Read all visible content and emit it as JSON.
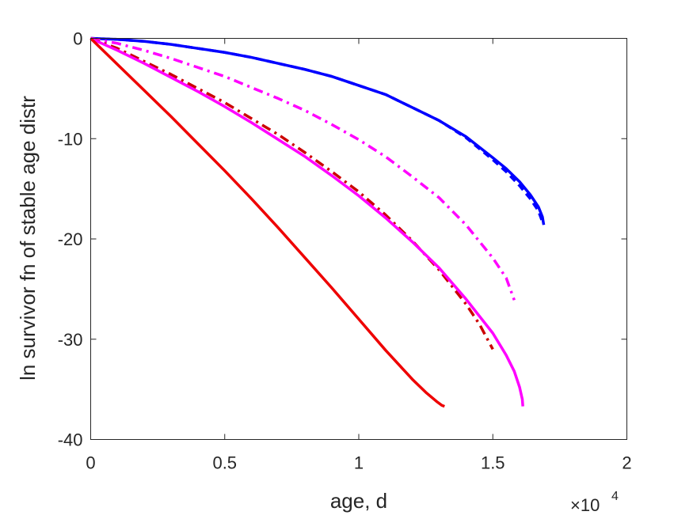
{
  "chart_data": {
    "type": "line",
    "xlabel": "age, d",
    "ylabel": "ln survivor fn of stable age distr",
    "x_exponent_label": "×10",
    "x_exponent_power": "4",
    "xlim": [
      0,
      20000
    ],
    "ylim": [
      -40,
      0
    ],
    "xticks": [
      0,
      5000,
      10000,
      15000,
      20000
    ],
    "xtick_labels": [
      "0",
      "0.5",
      "1",
      "1.5",
      "2"
    ],
    "yticks": [
      0,
      -10,
      -20,
      -30,
      -40
    ],
    "ytick_labels": [
      "0",
      "-10",
      "-20",
      "-30",
      "-40"
    ],
    "grid": false,
    "legend": "none",
    "series": [
      {
        "color": "#0000ff",
        "style": "solid",
        "x": [
          0,
          1000,
          2000,
          3000,
          4000,
          5000,
          6000,
          7000,
          8000,
          9000,
          10000,
          11000,
          12000,
          13000,
          14000,
          15000,
          15500,
          16000,
          16400,
          16700,
          16850,
          16900
        ],
        "y": [
          0,
          -0.1,
          -0.3,
          -0.6,
          -1.0,
          -1.4,
          -1.9,
          -2.5,
          -3.1,
          -3.8,
          -4.7,
          -5.6,
          -6.9,
          -8.2,
          -9.8,
          -11.9,
          -13.0,
          -14.3,
          -15.6,
          -16.8,
          -17.8,
          -18.6
        ]
      },
      {
        "color": "#0000ff",
        "style": "dashed",
        "x": [
          0,
          1000,
          2000,
          3000,
          4000,
          5000,
          6000,
          7000,
          8000,
          9000,
          10000,
          11000,
          12000,
          13000,
          14000,
          15000,
          15500,
          16000,
          16400,
          16700,
          16850
        ],
        "y": [
          0,
          -0.1,
          -0.3,
          -0.6,
          -1.0,
          -1.4,
          -1.9,
          -2.5,
          -3.1,
          -3.8,
          -4.7,
          -5.6,
          -6.9,
          -8.2,
          -9.9,
          -12.1,
          -13.3,
          -14.7,
          -16.0,
          -17.2,
          -18.3
        ]
      },
      {
        "color": "#ff00ff",
        "style": "dashdot",
        "x": [
          0,
          1000,
          2000,
          3000,
          4000,
          5000,
          6000,
          7000,
          8000,
          9000,
          10000,
          11000,
          12000,
          13000,
          14000,
          15000,
          15500,
          15800
        ],
        "y": [
          0,
          -0.5,
          -1.2,
          -2.0,
          -2.9,
          -3.8,
          -4.9,
          -6.0,
          -7.2,
          -8.6,
          -10.1,
          -11.8,
          -13.8,
          -15.9,
          -18.6,
          -21.9,
          -23.9,
          -26.1
        ]
      },
      {
        "color": "#cc0000",
        "style": "dashdot",
        "x": [
          0,
          1000,
          2000,
          3000,
          4000,
          5000,
          6000,
          7000,
          8000,
          9000,
          10000,
          11000,
          12000,
          13000,
          14000,
          14500,
          14800,
          15000
        ],
        "y": [
          0,
          -1.0,
          -2.3,
          -3.6,
          -5.0,
          -6.4,
          -8.0,
          -9.6,
          -11.4,
          -13.3,
          -15.3,
          -17.6,
          -20.2,
          -23.1,
          -26.5,
          -28.5,
          -30.0,
          -31.0
        ]
      },
      {
        "color": "#ff00ff",
        "style": "solid",
        "x": [
          0,
          1000,
          2000,
          3000,
          4000,
          5000,
          6000,
          7000,
          8000,
          9000,
          10000,
          11000,
          12000,
          13000,
          14000,
          15000,
          15500,
          15800,
          16000,
          16100,
          16120
        ],
        "y": [
          0,
          -1.2,
          -2.5,
          -3.9,
          -5.3,
          -6.8,
          -8.4,
          -10.1,
          -11.8,
          -13.7,
          -15.7,
          -17.9,
          -20.3,
          -22.9,
          -26.0,
          -29.4,
          -31.6,
          -33.2,
          -34.8,
          -36.0,
          -36.7
        ]
      },
      {
        "color": "#ee0000",
        "style": "solid",
        "x": [
          0,
          1000,
          2000,
          3000,
          4000,
          5000,
          6000,
          7000,
          8000,
          9000,
          10000,
          11000,
          12000,
          12500,
          12900,
          13100,
          13200
        ],
        "y": [
          0,
          -2.6,
          -5.2,
          -7.8,
          -10.5,
          -13.2,
          -16.0,
          -18.9,
          -21.9,
          -24.9,
          -28.0,
          -31.1,
          -34.0,
          -35.3,
          -36.2,
          -36.6,
          -36.7
        ]
      }
    ]
  }
}
